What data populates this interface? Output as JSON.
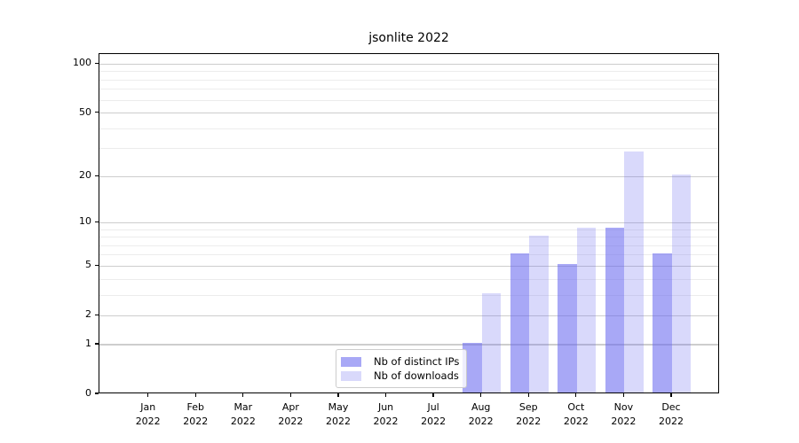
{
  "chart_data": {
    "type": "bar",
    "title": "jsonlite 2022",
    "categories": [
      "Jan",
      "Feb",
      "Mar",
      "Apr",
      "May",
      "Jun",
      "Jul",
      "Aug",
      "Sep",
      "Oct",
      "Nov",
      "Dec"
    ],
    "x_tick_year": "2022",
    "series": [
      {
        "name": "Nb of distinct IPs",
        "color": "rgba(102,102,240,0.57)",
        "values": [
          0,
          0,
          0,
          0,
          0,
          0,
          0,
          1,
          6,
          5,
          9,
          6
        ]
      },
      {
        "name": "Nb of downloads",
        "color": "rgba(102,102,240,0.25)",
        "values": [
          0,
          0,
          0,
          0,
          0,
          0,
          0,
          3,
          8,
          9,
          28,
          20
        ]
      }
    ],
    "yaxis": {
      "scale": "log1p",
      "major_ticks": [
        0,
        1,
        2,
        5,
        10,
        20,
        50,
        100
      ],
      "major_gridlines": [
        1,
        2,
        5,
        10,
        20,
        50,
        100
      ],
      "minor_gridlines": [
        3,
        4,
        6,
        7,
        8,
        9,
        30,
        40,
        60,
        70,
        80,
        90
      ],
      "ylim": [
        0,
        115
      ]
    },
    "legend_position": "lower center",
    "colors": {
      "bar_base": "#6666f0",
      "major_grid": "#cdcdcd",
      "minor_grid": "#ececec",
      "spine": "#000000",
      "text": "#000000"
    }
  }
}
